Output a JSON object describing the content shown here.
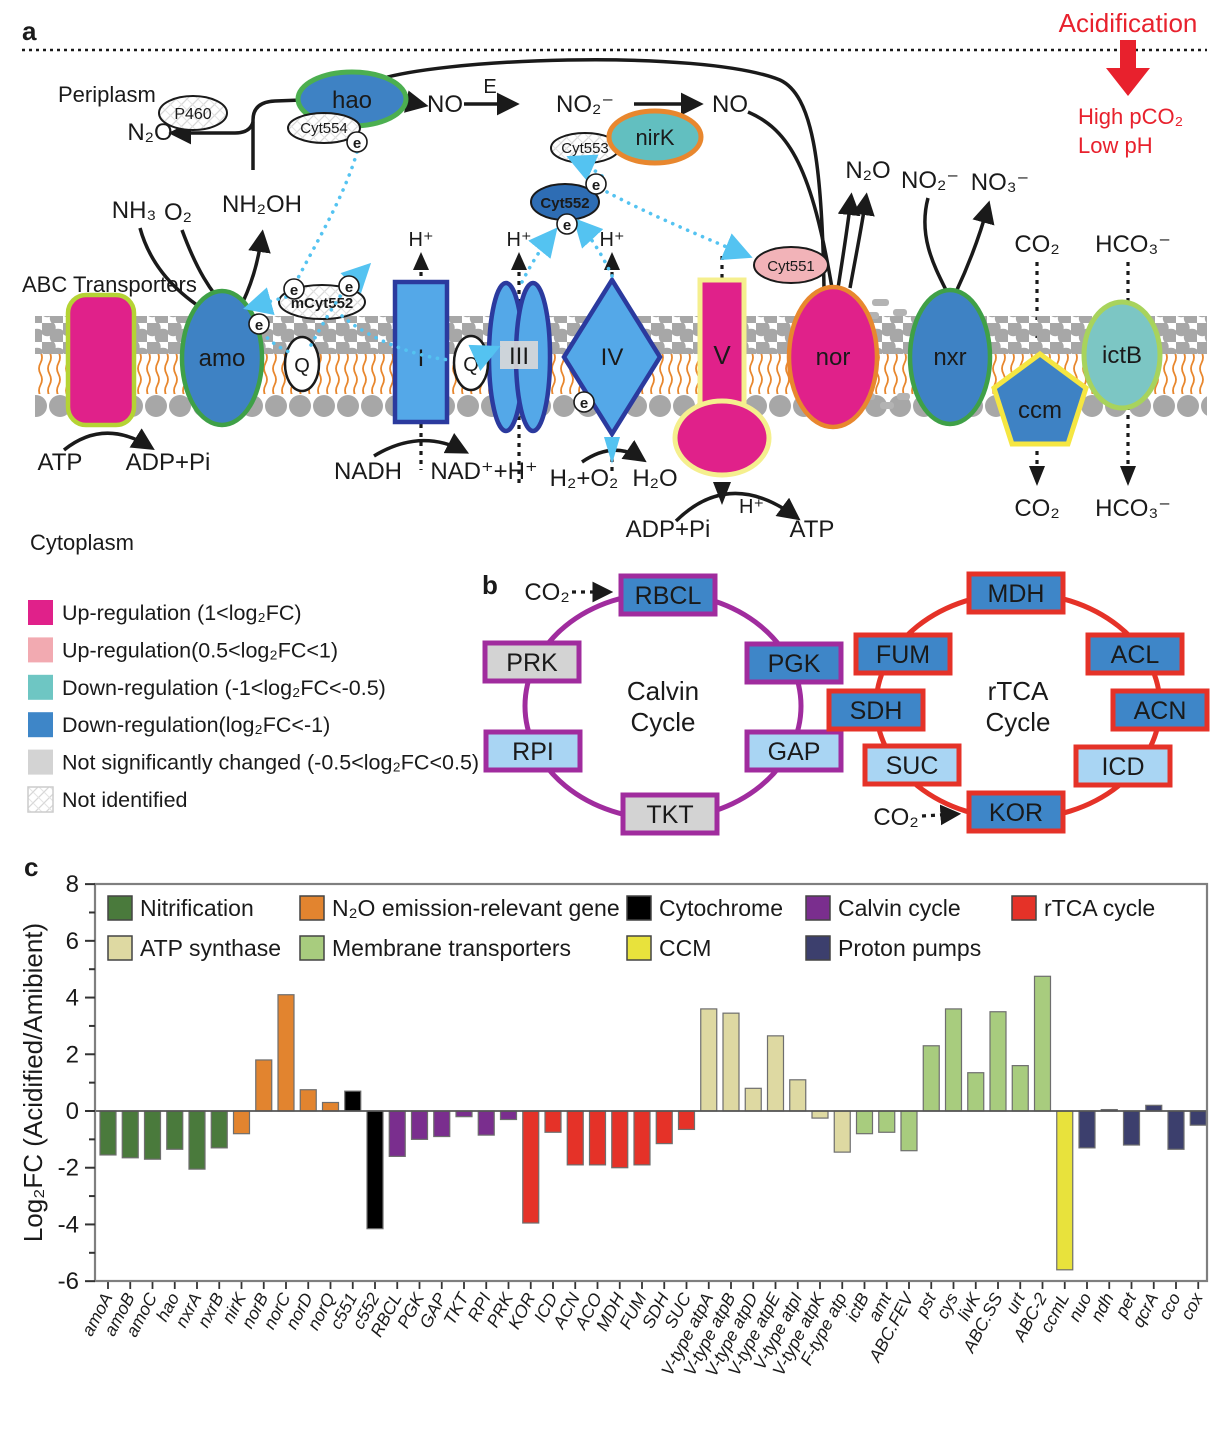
{
  "panel_a": {
    "label": "a",
    "periplasm": "Periplasm",
    "cytoplasm": "Cytoplasm",
    "abc_transporters": "ABC Transporters",
    "acidification": "Acidification",
    "high_pco2": "High pCO₂",
    "low_ph": "Low pH",
    "accent_red": "#e8212d",
    "n2o_left": "N₂O",
    "p460": "P460",
    "hao": "hao",
    "cyt554": "Cyt554",
    "no_1": "NO",
    "e_arrow": "E",
    "no2_mid": "NO₂⁻",
    "no_2": "NO",
    "cyt553": "Cyt553",
    "nirk": "nirK",
    "cyt552": "Cyt552",
    "mcyt552": "mCyt552",
    "cyt551": "Cyt551",
    "nh3": "NH₃",
    "o2": "O₂",
    "nh2oh": "NH₂OH",
    "amo": "amo",
    "q1": "Q",
    "q2": "Q",
    "complex_i": "I",
    "complex_iii": "III",
    "complex_iv": "IV",
    "complex_v": "V",
    "nor": "nor",
    "nxr": "nxr",
    "ccm": "ccm",
    "ictb": "ictB",
    "n2o_nor": "N₂O",
    "no2_nxr": "NO₂⁻",
    "no3_nxr": "NO₃⁻",
    "co2_top": "CO₂",
    "hco3_top": "HCO₃⁻",
    "co2_bottom": "CO₂",
    "hco3_bottom": "HCO₃⁻",
    "hplus": "H⁺",
    "atp_left": "ATP",
    "adp_left": "ADP+Pi",
    "nadh": "NADH",
    "nad": "NAD⁺+H⁺",
    "h2o2": "H₂+O₂",
    "h2o": "H₂O",
    "adp_v": "ADP+Pi",
    "atp_v": "ATP",
    "electron": "e"
  },
  "legend_b": {
    "items": [
      {
        "color": "#e0218a",
        "hatch": false,
        "label": "Up-regulation (1<log₂FC)"
      },
      {
        "color": "#f2aab1",
        "hatch": false,
        "label": "Up-regulation(0.5<log₂FC<1)"
      },
      {
        "color": "#6ec6c3",
        "hatch": false,
        "label": "Down-regulation (-1<log₂FC<-0.5)"
      },
      {
        "color": "#3e86c8",
        "hatch": false,
        "label": "Down-regulation(log₂FC<-1)"
      },
      {
        "color": "#d3d3d3",
        "hatch": false,
        "label": "Not significantly changed (-0.5<log₂FC<0.5)"
      },
      {
        "color": "#ffffff",
        "hatch": true,
        "label": "Not identified"
      }
    ]
  },
  "panel_b": {
    "label": "b",
    "calvin": {
      "title1": "Calvin",
      "title2": "Cycle",
      "co2": "CO₂",
      "ring_color": "#a02c9e",
      "boxes": [
        {
          "label": "RBCL",
          "fill": "#3e86c8"
        },
        {
          "label": "PGK",
          "fill": "#3e86c8"
        },
        {
          "label": "GAP",
          "fill": "#a9d5f3"
        },
        {
          "label": "TKT",
          "fill": "#d3d3d3"
        },
        {
          "label": "RPI",
          "fill": "#a9d5f3"
        },
        {
          "label": "PRK",
          "fill": "#d3d3d3"
        }
      ]
    },
    "rtca": {
      "title1": "rTCA",
      "title2": "Cycle",
      "co2": "CO₂",
      "ring_color": "#e53228",
      "boxes": [
        {
          "label": "MDH",
          "fill": "#3e86c8"
        },
        {
          "label": "ACL",
          "fill": "#3e86c8"
        },
        {
          "label": "ACN",
          "fill": "#3e86c8"
        },
        {
          "label": "ICD",
          "fill": "#a9d5f3"
        },
        {
          "label": "KOR",
          "fill": "#3e86c8"
        },
        {
          "label": "SUC",
          "fill": "#a9d5f3"
        },
        {
          "label": "SDH",
          "fill": "#3e86c8"
        },
        {
          "label": "FUM",
          "fill": "#3e86c8"
        }
      ]
    }
  },
  "chart_data": {
    "type": "bar",
    "panel_label": "c",
    "ylabel": "Log₂FC (Acidified/Amibient)",
    "ylim": [
      -6,
      8
    ],
    "yticks": [
      8,
      6,
      4,
      2,
      0,
      -2,
      -4,
      -6
    ],
    "grid": false,
    "legend_position": "top-inside",
    "groups": {
      "Nitrification": "#4a7a3c",
      "N₂O emission-relevant gene": "#e2842f",
      "Cytochrome": "#000000",
      "Calvin cycle": "#7a2e8e",
      "rTCA cycle": "#e53228",
      "ATP synthase": "#ded9a2",
      "Membrane transporters": "#a8cc7e",
      "CCM": "#e8e23c",
      "Proton pumps": "#3c3f6d"
    },
    "legend_rows": [
      [
        "Nitrification",
        "N₂O emission-relevant gene",
        "Cytochrome",
        "Calvin cycle",
        "rTCA cycle"
      ],
      [
        "ATP synthase",
        "Membrane transporters",
        "CCM",
        "Proton pumps"
      ]
    ],
    "genes": [
      {
        "label": "amoA",
        "value": -1.55,
        "group": "Nitrification"
      },
      {
        "label": "amoB",
        "value": -1.65,
        "group": "Nitrification"
      },
      {
        "label": "amoC",
        "value": -1.7,
        "group": "Nitrification"
      },
      {
        "label": "hao",
        "value": -1.35,
        "group": "Nitrification"
      },
      {
        "label": "nxrA",
        "value": -2.05,
        "group": "Nitrification"
      },
      {
        "label": "nxrB",
        "value": -1.3,
        "group": "Nitrification"
      },
      {
        "label": "nirK",
        "value": -0.8,
        "group": "N₂O emission-relevant gene"
      },
      {
        "label": "norB",
        "value": 1.8,
        "group": "N₂O emission-relevant gene"
      },
      {
        "label": "norC",
        "value": 4.1,
        "group": "N₂O emission-relevant gene"
      },
      {
        "label": "norD",
        "value": 0.75,
        "group": "N₂O emission-relevant gene"
      },
      {
        "label": "norQ",
        "value": 0.3,
        "group": "N₂O emission-relevant gene"
      },
      {
        "label": "c551",
        "value": 0.7,
        "group": "Cytochrome"
      },
      {
        "label": "c552",
        "value": -4.15,
        "group": "Cytochrome"
      },
      {
        "label": "RBCL",
        "value": -1.6,
        "group": "Calvin cycle"
      },
      {
        "label": "PGK",
        "value": -1.0,
        "group": "Calvin cycle"
      },
      {
        "label": "GAP",
        "value": -0.9,
        "group": "Calvin cycle"
      },
      {
        "label": "TKT",
        "value": -0.2,
        "group": "Calvin cycle"
      },
      {
        "label": "RPI",
        "value": -0.85,
        "group": "Calvin cycle"
      },
      {
        "label": "PRK",
        "value": -0.3,
        "group": "Calvin cycle"
      },
      {
        "label": "KOR",
        "value": -3.95,
        "group": "rTCA cycle"
      },
      {
        "label": "ICD",
        "value": -0.75,
        "group": "rTCA cycle"
      },
      {
        "label": "ACN",
        "value": -1.9,
        "group": "rTCA cycle"
      },
      {
        "label": "ACO",
        "value": -1.9,
        "group": "rTCA cycle"
      },
      {
        "label": "MDH",
        "value": -2.0,
        "group": "rTCA cycle"
      },
      {
        "label": "FUM",
        "value": -1.9,
        "group": "rTCA cycle"
      },
      {
        "label": "SDH",
        "value": -1.15,
        "group": "rTCA cycle"
      },
      {
        "label": "SUC",
        "value": -0.65,
        "group": "rTCA cycle"
      },
      {
        "label": "V-type atpA",
        "value": 3.6,
        "group": "ATP synthase"
      },
      {
        "label": "V-type atpB",
        "value": 3.45,
        "group": "ATP synthase"
      },
      {
        "label": "V-type atpD",
        "value": 0.8,
        "group": "ATP synthase"
      },
      {
        "label": "V-type atpE",
        "value": 2.65,
        "group": "ATP synthase"
      },
      {
        "label": "V-type atpI",
        "value": 1.1,
        "group": "ATP synthase"
      },
      {
        "label": "V-type atpK",
        "value": -0.25,
        "group": "ATP synthase"
      },
      {
        "label": "F-type atp",
        "value": -1.45,
        "group": "ATP synthase"
      },
      {
        "label": "ictB",
        "value": -0.8,
        "group": "Membrane transporters"
      },
      {
        "label": "amt",
        "value": -0.75,
        "group": "Membrane transporters"
      },
      {
        "label": "ABC.FEV",
        "value": -1.4,
        "group": "Membrane transporters"
      },
      {
        "label": "pst",
        "value": 2.3,
        "group": "Membrane transporters"
      },
      {
        "label": "cys",
        "value": 3.6,
        "group": "Membrane transporters"
      },
      {
        "label": "livK",
        "value": 1.35,
        "group": "Membrane transporters"
      },
      {
        "label": "ABC.SS",
        "value": 3.5,
        "group": "Membrane transporters"
      },
      {
        "label": "urt",
        "value": 1.6,
        "group": "Membrane transporters"
      },
      {
        "label": "ABC-2",
        "value": 4.75,
        "group": "Membrane transporters"
      },
      {
        "label": "ccmL",
        "value": -5.6,
        "group": "CCM"
      },
      {
        "label": "nuo",
        "value": -1.3,
        "group": "Proton pumps"
      },
      {
        "label": "ndh",
        "value": 0.05,
        "group": "Proton pumps"
      },
      {
        "label": "pet",
        "value": -1.2,
        "group": "Proton pumps"
      },
      {
        "label": "qcrA",
        "value": 0.2,
        "group": "Proton pumps"
      },
      {
        "label": "cco",
        "value": -1.35,
        "group": "Proton pumps"
      },
      {
        "label": "cox",
        "value": -0.5,
        "group": "Proton pumps"
      }
    ]
  }
}
